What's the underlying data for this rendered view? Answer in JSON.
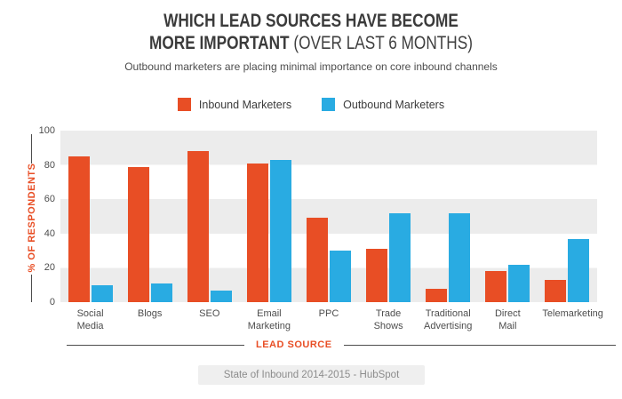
{
  "title": {
    "line1": "WHICH LEAD SOURCES HAVE BECOME",
    "line2_bold": "MORE IMPORTANT",
    "line2_light": "(OVER LAST 6 MONTHS)",
    "subtitle": "Outbound marketers are placing minimal importance on core inbound channels"
  },
  "chart_data": {
    "type": "bar",
    "title": "WHICH LEAD SOURCES HAVE BECOME MORE IMPORTANT (OVER LAST 6 MONTHS)",
    "categories": [
      "Social Media",
      "Blogs",
      "SEO",
      "Email Marketing",
      "PPC",
      "Trade Shows",
      "Traditional Advertising",
      "Direct Mail",
      "Telemarketing"
    ],
    "category_label_lines": [
      "Social\nMedia",
      "Blogs",
      "SEO",
      "Email\nMarketing",
      "PPC",
      "Trade\nShows",
      "Traditional\nAdvertising",
      "Direct\nMail",
      "Telemarketing"
    ],
    "series": [
      {
        "name": "Inbound Marketers",
        "color": "#E84E25",
        "values": [
          85,
          79,
          88,
          81,
          49,
          31,
          8,
          18,
          13
        ]
      },
      {
        "name": "Outbound Marketers",
        "color": "#29ABE2",
        "values": [
          10,
          11,
          7,
          83,
          30,
          52,
          52,
          22,
          37
        ]
      }
    ],
    "xlabel": "LEAD SOURCE",
    "ylabel": "% OF RESPONDENTS",
    "ylim": [
      0,
      100
    ],
    "yticks": [
      0,
      20,
      40,
      60,
      80,
      100
    ],
    "grid": "alternating horizontal bands (gray on 0-20, 40-60, 80-100)",
    "legend_position": "top center"
  },
  "theme": {
    "accent": "#E84E25",
    "band": "#ECECEC",
    "text_dark": "#3B3B3B",
    "text_medium": "#4D4D4D",
    "footer_bg": "#EFEFEF",
    "footer_text": "#8C8C8C"
  },
  "footer": {
    "source": "State of Inbound 2014-2015 - HubSpot"
  }
}
